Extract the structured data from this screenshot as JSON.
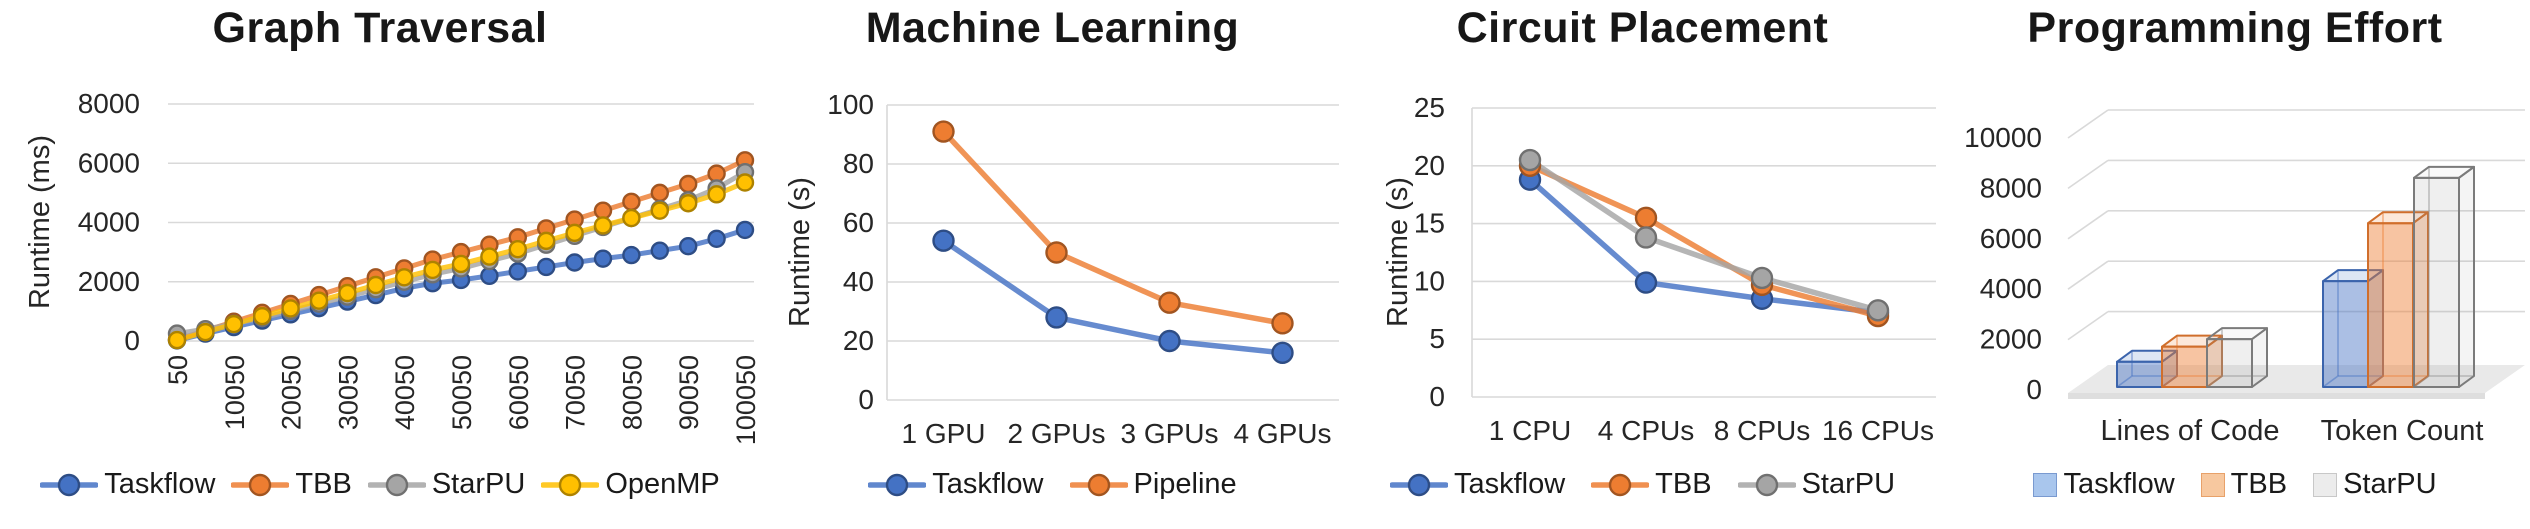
{
  "colors": {
    "taskflow": "#4472C4",
    "tbb": "#ED7D31",
    "starpu": "#A5A5A5",
    "openmp": "#FFC000",
    "grid": "#D9D9D9",
    "text": "#262626",
    "title": "#171717"
  },
  "chart_data": [
    {
      "id": "graph-traversal",
      "type": "line",
      "title": "Graph Traversal",
      "ylabel": "Runtime (ms)",
      "ylim": [
        0,
        8000
      ],
      "yticks": [
        0,
        2000,
        4000,
        6000,
        8000
      ],
      "x": [
        50,
        5050,
        10050,
        15050,
        20050,
        25050,
        30050,
        35050,
        40050,
        45050,
        50050,
        55050,
        60050,
        65050,
        70050,
        75050,
        80050,
        85050,
        90050,
        95050,
        100050
      ],
      "xtick_labels": [
        "50",
        "10050",
        "20050",
        "30050",
        "40050",
        "50050",
        "60050",
        "70050",
        "80050",
        "90050",
        "100050"
      ],
      "legend_position": "bottom",
      "grid": true,
      "series": [
        {
          "name": "Taskflow",
          "color": "#4472C4",
          "values": [
            20,
            250,
            470,
            690,
            900,
            1110,
            1330,
            1550,
            1780,
            1950,
            2060,
            2200,
            2350,
            2500,
            2650,
            2780,
            2900,
            3050,
            3200,
            3450,
            3750
          ]
        },
        {
          "name": "TBB",
          "color": "#ED7D31",
          "values": [
            50,
            350,
            650,
            950,
            1250,
            1550,
            1850,
            2150,
            2450,
            2750,
            3000,
            3250,
            3500,
            3800,
            4100,
            4400,
            4700,
            5000,
            5300,
            5650,
            6100
          ]
        },
        {
          "name": "StarPU",
          "color": "#A5A5A5",
          "values": [
            250,
            400,
            580,
            780,
            1020,
            1260,
            1500,
            1750,
            2000,
            2250,
            2450,
            2700,
            2950,
            3250,
            3550,
            3850,
            4150,
            4450,
            4750,
            5150,
            5700
          ]
        },
        {
          "name": "OpenMP",
          "color": "#FFC000",
          "values": [
            30,
            300,
            570,
            840,
            1100,
            1360,
            1620,
            1890,
            2150,
            2400,
            2600,
            2850,
            3100,
            3380,
            3650,
            3900,
            4150,
            4400,
            4650,
            4950,
            5350
          ]
        }
      ]
    },
    {
      "id": "machine-learning",
      "type": "line",
      "title": "Machine Learning",
      "ylabel": "Runtime (s)",
      "ylim": [
        0,
        100
      ],
      "yticks": [
        0,
        20,
        40,
        60,
        80,
        100
      ],
      "categories": [
        "1 GPU",
        "2 GPUs",
        "3 GPUs",
        "4 GPUs"
      ],
      "legend_position": "bottom",
      "grid": true,
      "series": [
        {
          "name": "Taskflow",
          "color": "#4472C4",
          "values": [
            54,
            28,
            20,
            16
          ]
        },
        {
          "name": "Pipeline",
          "color": "#ED7D31",
          "values": [
            91,
            50,
            33,
            26
          ]
        }
      ]
    },
    {
      "id": "circuit-placement",
      "type": "line",
      "title": "Circuit Placement",
      "ylabel": "Runtime (s)",
      "ylim": [
        0,
        25
      ],
      "yticks": [
        0,
        5,
        10,
        15,
        20,
        25
      ],
      "categories": [
        "1 CPU",
        "4 CPUs",
        "8 CPUs",
        "16 CPUs"
      ],
      "legend_position": "bottom",
      "grid": true,
      "series": [
        {
          "name": "Taskflow",
          "color": "#4472C4",
          "values": [
            18.8,
            9.9,
            8.5,
            7.3
          ]
        },
        {
          "name": "TBB",
          "color": "#ED7D31",
          "values": [
            20,
            15.5,
            9.7,
            7
          ]
        },
        {
          "name": "StarPU",
          "color": "#A5A5A5",
          "values": [
            20.5,
            13.8,
            10.3,
            7.5
          ]
        }
      ]
    },
    {
      "id": "programming-effort",
      "type": "bar3d",
      "title": "Programming Effort",
      "ylabel": "",
      "ylim": [
        0,
        10000
      ],
      "yticks": [
        0,
        2000,
        4000,
        6000,
        8000,
        10000
      ],
      "categories": [
        "Lines of Code",
        "Token Count"
      ],
      "legend_position": "bottom",
      "grid": true,
      "series": [
        {
          "name": "Taskflow",
          "color": "#4472C4",
          "fill_alpha": 0.45,
          "fill": "#A9C6ED",
          "fill_border": "#7A9AD0",
          "values": [
            1000,
            4200
          ]
        },
        {
          "name": "TBB",
          "color": "#ED7D31",
          "fill_alpha": 0.45,
          "fill": "#F7C89F",
          "fill_border": "#E8A169",
          "values": [
            1600,
            6500
          ]
        },
        {
          "name": "StarPU",
          "color": "#8C8C8C",
          "fill_alpha": 0.14,
          "fill": "#ECECEC",
          "fill_border": "#C8C8C8",
          "values": [
            1900,
            8300
          ]
        }
      ]
    }
  ]
}
